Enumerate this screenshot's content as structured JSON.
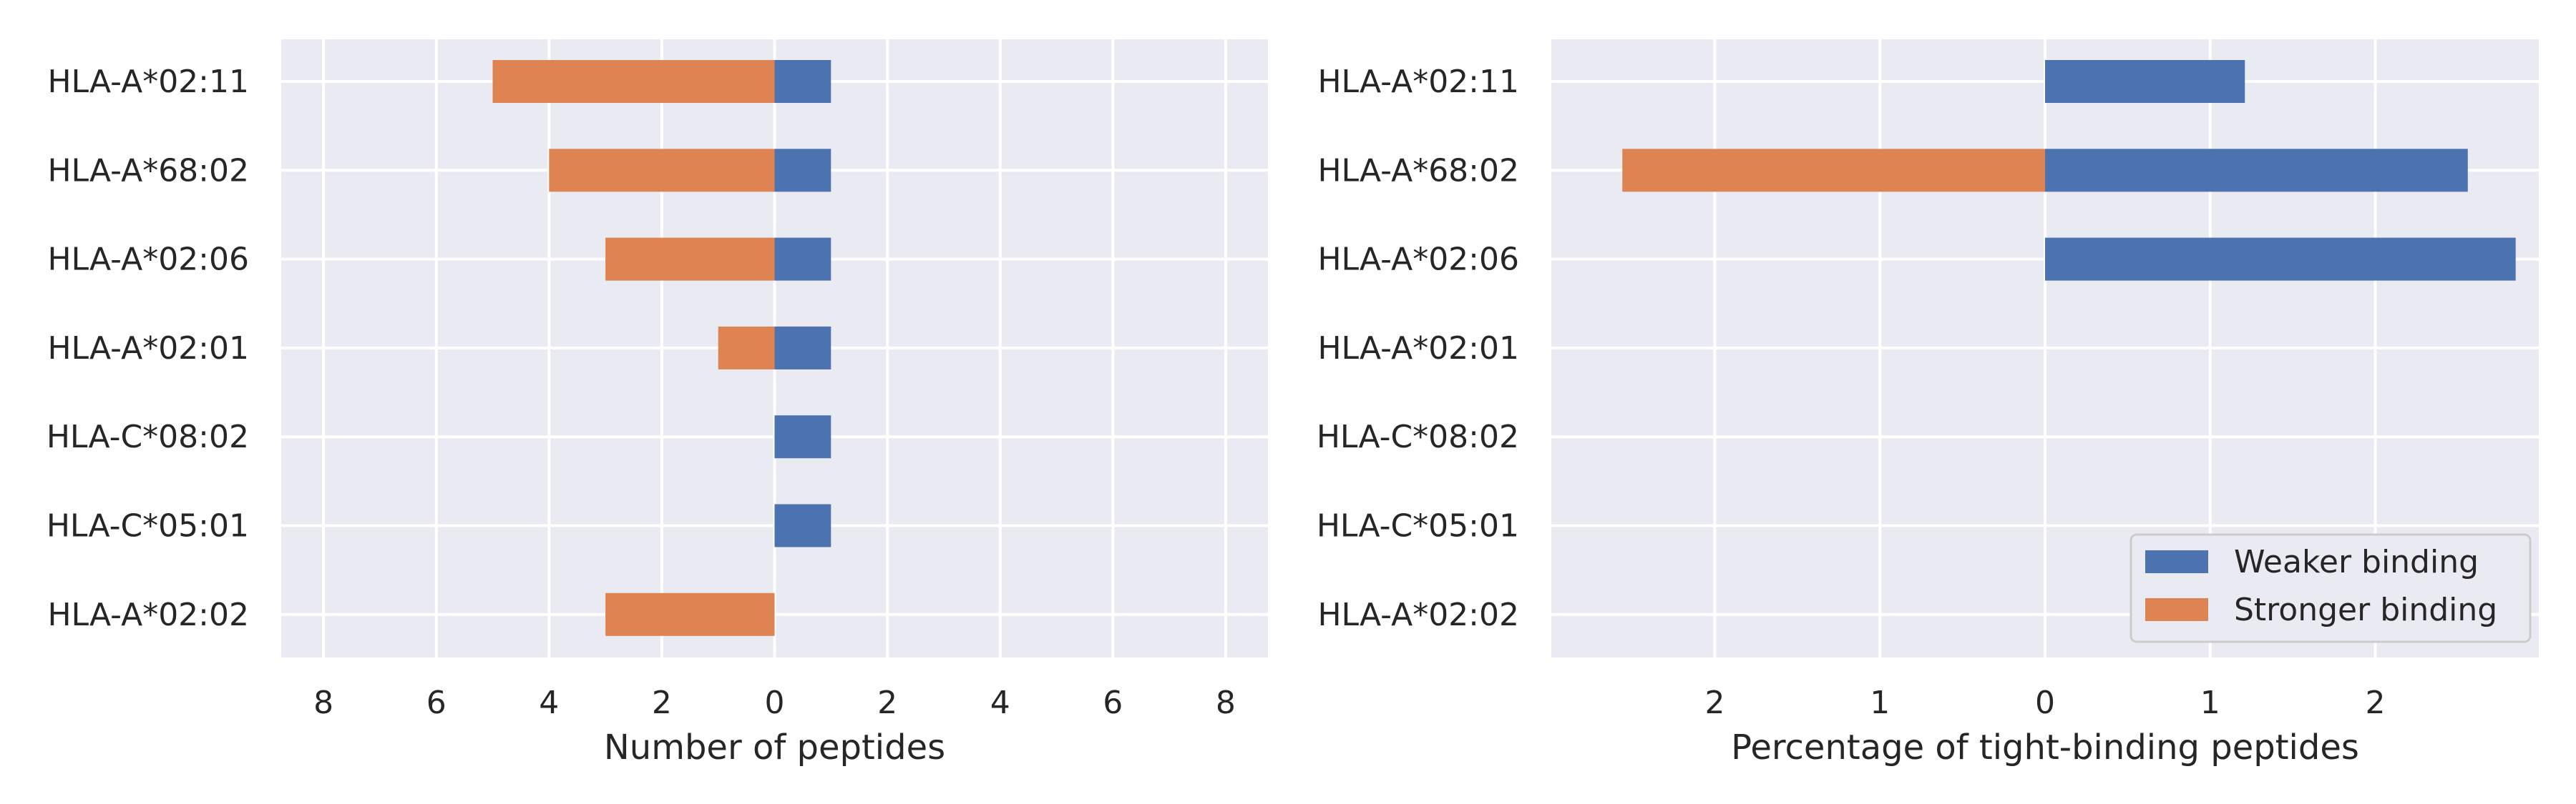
{
  "chart_data": [
    {
      "type": "bar",
      "orientation": "horizontal",
      "diverging": true,
      "categories": [
        "HLA-A*02:11",
        "HLA-A*68:02",
        "HLA-A*02:06",
        "HLA-A*02:01",
        "HLA-C*08:02",
        "HLA-C*05:01",
        "HLA-A*02:02"
      ],
      "series": [
        {
          "name": "Weaker binding",
          "color": "#4c72b0",
          "direction": "right",
          "values": [
            1,
            1,
            1,
            1,
            1,
            1,
            0
          ]
        },
        {
          "name": "Stronger binding",
          "color": "#dd8452",
          "direction": "left",
          "values": [
            5,
            4,
            3,
            1,
            0,
            0,
            3
          ]
        }
      ],
      "xlabel": "Number of peptides",
      "ylabel": "",
      "xlim": [
        -8.75,
        8.75
      ],
      "xticks": [
        -8,
        -6,
        -4,
        -2,
        0,
        2,
        4,
        6,
        8
      ],
      "xtick_labels": [
        "8",
        "6",
        "4",
        "2",
        "0",
        "2",
        "4",
        "6",
        "8"
      ],
      "grid": true,
      "legend": false
    },
    {
      "type": "bar",
      "orientation": "horizontal",
      "diverging": true,
      "categories": [
        "HLA-A*02:11",
        "HLA-A*68:02",
        "HLA-A*02:06",
        "HLA-A*02:01",
        "HLA-C*08:02",
        "HLA-C*05:01",
        "HLA-A*02:02"
      ],
      "series": [
        {
          "name": "Weaker binding",
          "color": "#4c72b0",
          "direction": "right",
          "values": [
            1.21,
            2.56,
            2.85,
            0,
            0,
            0,
            0
          ]
        },
        {
          "name": "Stronger binding",
          "color": "#dd8452",
          "direction": "left",
          "values": [
            0,
            2.56,
            0,
            0,
            0,
            0,
            0
          ]
        }
      ],
      "xlabel": "Percentage of tight-binding peptides",
      "ylabel": "",
      "xlim": [
        -2.99,
        2.99
      ],
      "xticks": [
        -2,
        -1,
        0,
        1,
        2
      ],
      "xtick_labels": [
        "2",
        "1",
        "0",
        "1",
        "2"
      ],
      "grid": true,
      "legend": true,
      "legend_position": "lower-right"
    }
  ]
}
